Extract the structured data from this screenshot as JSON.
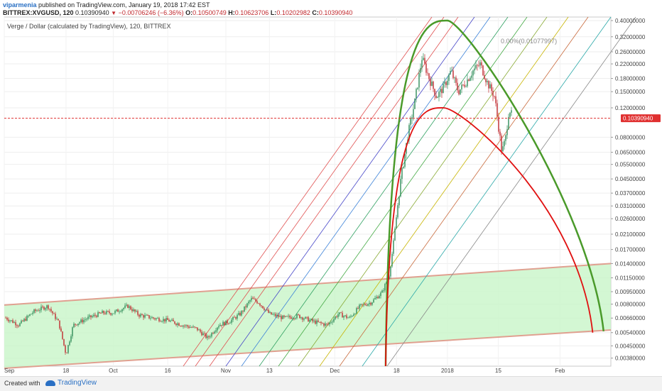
{
  "header": {
    "user": "viparmenia",
    "published": " published on TradingView.com, January 19, 2018 17:42 EST",
    "symbol": "BITTREX:XVGUSD, 120",
    "last": "0.10390940",
    "change_arrow": "▼",
    "change": "−0.00706246 (−6.36%)",
    "o_label": "O:",
    "o_value": "0.10500749",
    "h_label": "H:",
    "h_value": "0.10623706",
    "l_label": "L:",
    "l_value": "0.10202982",
    "c_label": "C:",
    "c_value": "0.10390940"
  },
  "chart_data": {
    "type": "line",
    "title": "Verge / Dollar (calculated by TradingView), 120, BITTREX",
    "y_scale": "log",
    "ylim": [
      0.0034,
      0.42
    ],
    "xlim": [
      "2017-09-01",
      "2018-02-15"
    ],
    "y_ticks": [
      "0.40000000",
      "0.32000000",
      "0.26000000",
      "0.22000000",
      "0.18000000",
      "0.15000000",
      "0.12000000",
      "0.08000000",
      "0.06500000",
      "0.05500000",
      "0.04500000",
      "0.03700000",
      "0.03100000",
      "0.02600000",
      "0.02100000",
      "0.01700000",
      "0.01400000",
      "0.01150000",
      "0.00950000",
      "0.00800000",
      "0.00660000",
      "0.00540000",
      "0.00450000",
      "0.00380000"
    ],
    "y_tick_values": [
      0.4,
      0.32,
      0.26,
      0.22,
      0.18,
      0.15,
      0.12,
      0.08,
      0.065,
      0.055,
      0.045,
      0.037,
      0.031,
      0.026,
      0.021,
      0.017,
      0.014,
      0.0115,
      0.0095,
      0.008,
      0.0066,
      0.0054,
      0.0045,
      0.0038
    ],
    "x_ticks": [
      "Sep",
      "18",
      "Oct",
      "16",
      "Nov",
      "13",
      "Dec",
      "18",
      "2018",
      "15",
      "Feb"
    ],
    "x_tick_dates": [
      "2017-09-01",
      "2017-09-18",
      "2017-10-01",
      "2017-10-16",
      "2017-11-01",
      "2017-11-13",
      "2017-12-01",
      "2017-12-18",
      "2018-01-01",
      "2018-01-15",
      "2018-02-01"
    ],
    "last_price": 0.1039094,
    "last_price_label": "0.10390940",
    "fib_label": "0.00%(0.01077997)",
    "price_path": [
      [
        "2017-09-01",
        0.0067
      ],
      [
        "2017-09-05",
        0.006
      ],
      [
        "2017-09-09",
        0.0072
      ],
      [
        "2017-09-13",
        0.0078
      ],
      [
        "2017-09-16",
        0.0062
      ],
      [
        "2017-09-18",
        0.004
      ],
      [
        "2017-09-20",
        0.006
      ],
      [
        "2017-09-24",
        0.0066
      ],
      [
        "2017-09-28",
        0.0071
      ],
      [
        "2017-10-01",
        0.0071
      ],
      [
        "2017-10-05",
        0.0078
      ],
      [
        "2017-10-08",
        0.0069
      ],
      [
        "2017-10-12",
        0.0066
      ],
      [
        "2017-10-16",
        0.0064
      ],
      [
        "2017-10-20",
        0.006
      ],
      [
        "2017-10-24",
        0.0057
      ],
      [
        "2017-10-27",
        0.005
      ],
      [
        "2017-10-30",
        0.006
      ],
      [
        "2017-11-02",
        0.0063
      ],
      [
        "2017-11-05",
        0.007
      ],
      [
        "2017-11-08",
        0.0086
      ],
      [
        "2017-11-10",
        0.0082
      ],
      [
        "2017-11-13",
        0.007
      ],
      [
        "2017-11-17",
        0.0066
      ],
      [
        "2017-11-21",
        0.0068
      ],
      [
        "2017-11-25",
        0.0063
      ],
      [
        "2017-11-29",
        0.006
      ],
      [
        "2017-12-02",
        0.007
      ],
      [
        "2017-12-05",
        0.0066
      ],
      [
        "2017-12-08",
        0.0078
      ],
      [
        "2017-12-11",
        0.0082
      ],
      [
        "2017-12-14",
        0.0094
      ],
      [
        "2017-12-16",
        0.012
      ],
      [
        "2017-12-17",
        0.0175
      ],
      [
        "2017-12-19",
        0.042
      ],
      [
        "2017-12-21",
        0.08
      ],
      [
        "2017-12-23",
        0.13
      ],
      [
        "2017-12-25",
        0.24
      ],
      [
        "2017-12-27",
        0.18
      ],
      [
        "2017-12-29",
        0.14
      ],
      [
        "2017-12-31",
        0.16
      ],
      [
        "2018-01-02",
        0.2
      ],
      [
        "2018-01-04",
        0.15
      ],
      [
        "2018-01-06",
        0.17
      ],
      [
        "2018-01-08",
        0.2
      ],
      [
        "2018-01-10",
        0.22
      ],
      [
        "2018-01-12",
        0.17
      ],
      [
        "2018-01-14",
        0.14
      ],
      [
        "2018-01-16",
        0.065
      ],
      [
        "2018-01-17",
        0.078
      ],
      [
        "2018-01-18",
        0.12
      ],
      [
        "2018-01-19",
        0.1039
      ]
    ],
    "channel": {
      "lower": [
        [
          "2017-09-01",
          0.0033
        ],
        [
          "2018-02-15",
          0.0056
        ]
      ],
      "upper": [
        [
          "2017-09-01",
          0.0079
        ],
        [
          "2018-02-15",
          0.014
        ]
      ]
    },
    "green_arc": {
      "peak_date": "2018-01-01",
      "peak_value": 0.4,
      "end_date": "2018-02-13",
      "end_value": 0.0055,
      "start_date": "2017-12-15",
      "start_value": 0.0034
    },
    "red_arc": {
      "peak_date": "2017-12-31",
      "peak_value": 0.12,
      "end_date": "2018-02-10",
      "end_value": 0.0054,
      "start_date": "2017-12-15",
      "start_value": 0.0034
    },
    "fan_colors": [
      "#e05050",
      "#e05050",
      "#e05050",
      "#4646c8",
      "#3c82d8",
      "#2ea060",
      "#44aa44",
      "#88aa33",
      "#c8b400",
      "#c86a3c",
      "#2aa8a8",
      "#888888"
    ],
    "colors": {
      "up": "#2e8b57",
      "down": "#c0282d",
      "channel_fill": "#c8f5c8",
      "channel_line": "#e0a090",
      "green_arc": "#4a9a2a",
      "red_arc": "#e01010",
      "last_line": "#e03030"
    }
  },
  "footer": {
    "created_with": "Created with",
    "brand": "TradingView"
  }
}
